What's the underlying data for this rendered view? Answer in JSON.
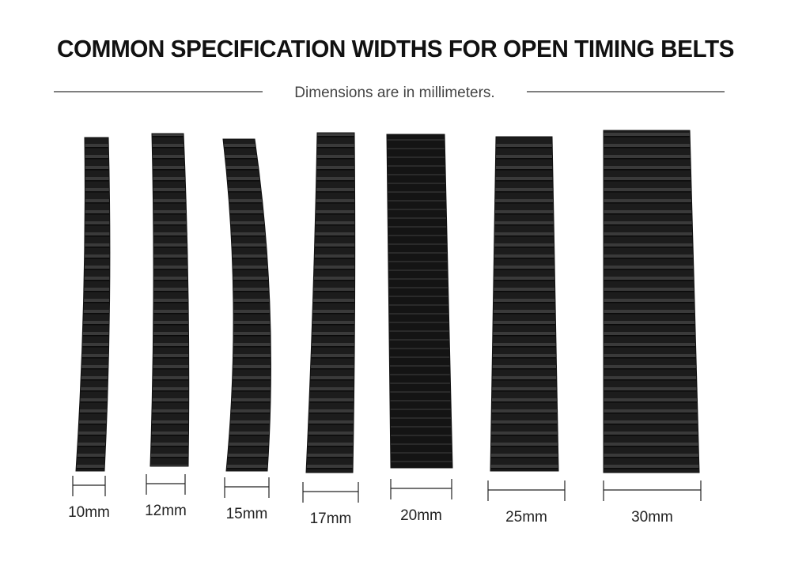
{
  "header": {
    "title": "COMMON SPECIFICATION WIDTHS FOR OPEN TIMING BELTS",
    "subtitle": "Dimensions are in millimeters."
  },
  "belts": [
    {
      "label": "10mm"
    },
    {
      "label": "12mm"
    },
    {
      "label": "15mm"
    },
    {
      "label": "17mm"
    },
    {
      "label": "20mm"
    },
    {
      "label": "25mm"
    },
    {
      "label": "30mm"
    }
  ]
}
